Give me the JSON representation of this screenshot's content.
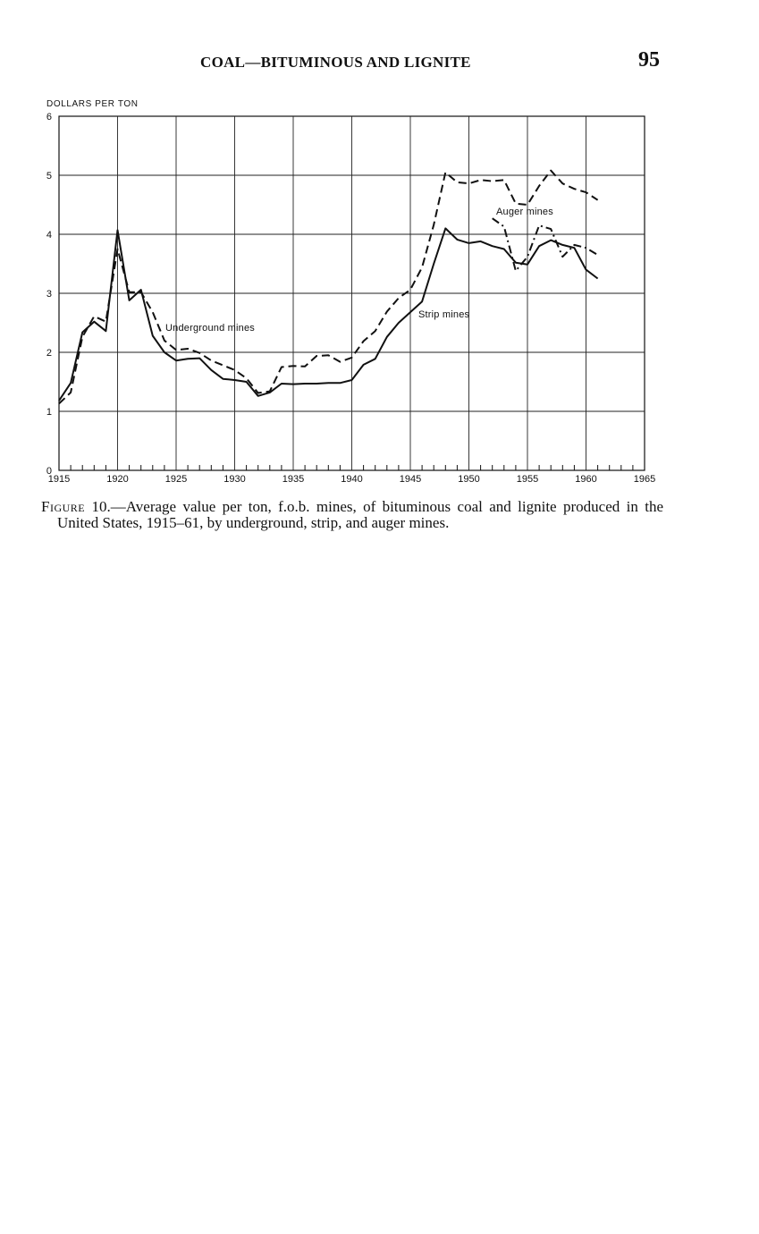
{
  "header": {
    "running_title": "COAL—BITUMINOUS AND LIGNITE",
    "page_number": "95"
  },
  "caption": {
    "label": "Figure",
    "text": " 10.—Average value per ton, f.o.b. mines, of bituminous coal and lignite produced in the United States, 1915–61, by underground, strip, and auger mines."
  },
  "chart_data": {
    "type": "line",
    "title": "",
    "ylabel": "DOLLARS PER TON",
    "xlabel": "",
    "xlim": [
      1915,
      1965
    ],
    "ylim": [
      0,
      6
    ],
    "x_ticks": [
      1915,
      1920,
      1925,
      1930,
      1935,
      1940,
      1945,
      1950,
      1955,
      1960,
      1965
    ],
    "y_ticks": [
      0,
      1,
      2,
      3,
      4,
      5,
      6
    ],
    "grid": true,
    "legend": "none (series labeled directly on chart)",
    "series": [
      {
        "name": "Underground mines",
        "style": "dashed",
        "points": [
          [
            1915,
            1.13
          ],
          [
            1916,
            1.32
          ],
          [
            1917,
            2.26
          ],
          [
            1918,
            2.61
          ],
          [
            1919,
            2.52
          ],
          [
            1920,
            3.75
          ],
          [
            1921,
            3.02
          ],
          [
            1922,
            3.02
          ],
          [
            1923,
            2.68
          ],
          [
            1924,
            2.2
          ],
          [
            1925,
            2.04
          ],
          [
            1926,
            2.06
          ],
          [
            1927,
            1.99
          ],
          [
            1928,
            1.86
          ],
          [
            1929,
            1.78
          ],
          [
            1930,
            1.7
          ],
          [
            1931,
            1.56
          ],
          [
            1932,
            1.31
          ],
          [
            1933,
            1.34
          ],
          [
            1934,
            1.75
          ],
          [
            1935,
            1.77
          ],
          [
            1936,
            1.76
          ],
          [
            1937,
            1.94
          ],
          [
            1938,
            1.95
          ],
          [
            1939,
            1.84
          ],
          [
            1940,
            1.91
          ],
          [
            1941,
            2.19
          ],
          [
            1942,
            2.36
          ],
          [
            1943,
            2.69
          ],
          [
            1944,
            2.92
          ],
          [
            1945,
            3.06
          ],
          [
            1946,
            3.44
          ],
          [
            1947,
            4.16
          ],
          [
            1948,
            5.05
          ],
          [
            1949,
            4.88
          ],
          [
            1950,
            4.86
          ],
          [
            1951,
            4.92
          ],
          [
            1952,
            4.9
          ],
          [
            1953,
            4.92
          ],
          [
            1954,
            4.52
          ],
          [
            1955,
            4.5
          ],
          [
            1956,
            4.82
          ],
          [
            1957,
            5.08
          ],
          [
            1958,
            4.86
          ],
          [
            1959,
            4.77
          ],
          [
            1960,
            4.71
          ],
          [
            1961,
            4.58
          ]
        ]
      },
      {
        "name": "Strip mines",
        "style": "solid",
        "points": [
          [
            1915,
            1.18
          ],
          [
            1916,
            1.48
          ],
          [
            1917,
            2.34
          ],
          [
            1918,
            2.52
          ],
          [
            1919,
            2.36
          ],
          [
            1920,
            4.07
          ],
          [
            1921,
            2.88
          ],
          [
            1922,
            3.06
          ],
          [
            1923,
            2.28
          ],
          [
            1924,
            2.0
          ],
          [
            1925,
            1.86
          ],
          [
            1926,
            1.89
          ],
          [
            1927,
            1.9
          ],
          [
            1928,
            1.7
          ],
          [
            1929,
            1.55
          ],
          [
            1930,
            1.53
          ],
          [
            1931,
            1.5
          ],
          [
            1932,
            1.26
          ],
          [
            1933,
            1.32
          ],
          [
            1934,
            1.47
          ],
          [
            1935,
            1.46
          ],
          [
            1936,
            1.47
          ],
          [
            1937,
            1.47
          ],
          [
            1938,
            1.48
          ],
          [
            1939,
            1.48
          ],
          [
            1940,
            1.53
          ],
          [
            1941,
            1.79
          ],
          [
            1942,
            1.89
          ],
          [
            1943,
            2.26
          ],
          [
            1944,
            2.5
          ],
          [
            1945,
            2.68
          ],
          [
            1946,
            2.86
          ],
          [
            1947,
            3.5
          ],
          [
            1948,
            4.1
          ],
          [
            1949,
            3.91
          ],
          [
            1950,
            3.85
          ],
          [
            1951,
            3.88
          ],
          [
            1952,
            3.8
          ],
          [
            1953,
            3.75
          ],
          [
            1954,
            3.52
          ],
          [
            1955,
            3.49
          ],
          [
            1956,
            3.8
          ],
          [
            1957,
            3.9
          ],
          [
            1958,
            3.82
          ],
          [
            1959,
            3.77
          ],
          [
            1960,
            3.4
          ],
          [
            1961,
            3.25
          ]
        ]
      },
      {
        "name": "Auger mines",
        "style": "dash-dot",
        "points": [
          [
            1952,
            4.27
          ],
          [
            1953,
            4.13
          ],
          [
            1954,
            3.38
          ],
          [
            1955,
            3.62
          ],
          [
            1956,
            4.15
          ],
          [
            1957,
            4.09
          ],
          [
            1958,
            3.62
          ],
          [
            1959,
            3.82
          ],
          [
            1960,
            3.77
          ],
          [
            1961,
            3.65
          ]
        ]
      }
    ]
  }
}
